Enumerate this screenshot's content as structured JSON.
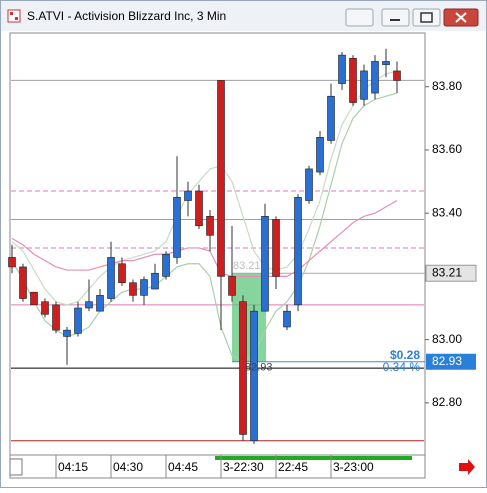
{
  "chart_data": {
    "type": "candlestick",
    "title": "S.ATVI - Activision Blizzard Inc, 3 Min",
    "categories": [
      null,
      null,
      null,
      null,
      "04:15",
      null,
      null,
      null,
      null,
      "04:30",
      null,
      null,
      null,
      null,
      "04:45",
      null,
      null,
      null,
      null,
      "3-22:30",
      null,
      null,
      null,
      null,
      "22:45",
      null,
      null,
      null,
      null,
      "3-23:00",
      null,
      null,
      null,
      null,
      null,
      null
    ],
    "open": [
      83.26,
      83.23,
      83.15,
      83.12,
      83.11,
      83.01,
      83.02,
      83.1,
      83.09,
      83.13,
      83.24,
      83.18,
      83.14,
      83.16,
      83.2,
      83.26,
      83.44,
      83.47,
      83.39,
      83.82,
      83.2,
      83.12,
      82.68,
      83.09,
      83.38,
      83.04,
      83.11,
      83.44,
      83.53,
      83.63,
      83.81,
      83.89,
      83.76,
      83.78,
      83.87,
      83.85
    ],
    "high": [
      83.3,
      83.24,
      83.15,
      83.13,
      83.12,
      83.04,
      83.12,
      83.19,
      83.16,
      83.31,
      83.26,
      83.19,
      83.2,
      83.24,
      83.28,
      83.58,
      83.5,
      83.49,
      83.41,
      83.82,
      83.36,
      83.14,
      83.11,
      83.43,
      83.39,
      83.11,
      83.46,
      83.55,
      83.66,
      83.81,
      83.91,
      83.9,
      83.87,
      83.9,
      83.92,
      83.88
    ],
    "low": [
      83.21,
      83.12,
      83.11,
      83.07,
      83.02,
      82.92,
      83.01,
      83.09,
      83.09,
      83.12,
      83.17,
      83.12,
      83.11,
      83.16,
      83.19,
      83.24,
      83.39,
      83.35,
      83.28,
      83.03,
      83.12,
      82.68,
      82.67,
      83.09,
      83.16,
      83.03,
      83.09,
      83.43,
      83.52,
      83.62,
      83.79,
      83.74,
      83.74,
      83.76,
      83.83,
      83.78
    ],
    "close": [
      83.23,
      83.13,
      83.11,
      83.08,
      83.03,
      83.03,
      83.1,
      83.12,
      83.14,
      83.26,
      83.18,
      83.14,
      83.19,
      83.21,
      83.27,
      83.45,
      83.47,
      83.36,
      83.33,
      83.2,
      83.14,
      82.7,
      83.09,
      83.39,
      83.2,
      83.09,
      83.45,
      83.54,
      83.64,
      83.77,
      83.9,
      83.75,
      83.85,
      83.88,
      83.88,
      83.82
    ],
    "up_color": "#2a6fd4",
    "down_color": "#cc2020",
    "series": [
      {
        "color": "#c6dcc6",
        "values": [
          83.31,
          83.28,
          83.22,
          83.16,
          83.12,
          83.11,
          83.12,
          83.16,
          83.2,
          83.23,
          83.25,
          83.26,
          83.27,
          83.28,
          83.31,
          83.39,
          83.46,
          83.5,
          83.54,
          83.55,
          83.5,
          83.39,
          83.28,
          83.23,
          83.22,
          83.23,
          83.27,
          83.35,
          83.44,
          83.57,
          83.68,
          83.74,
          83.79,
          83.82,
          83.84,
          83.85
        ]
      },
      {
        "color": "#a9cfa9",
        "values": [
          83.25,
          83.19,
          83.12,
          83.06,
          83.03,
          83.01,
          83.02,
          83.04,
          83.09,
          83.12,
          83.15,
          83.16,
          83.16,
          83.17,
          83.2,
          83.23,
          83.24,
          83.24,
          83.2,
          83.04,
          82.95,
          82.93,
          82.95,
          83.03,
          83.09,
          83.12,
          83.17,
          83.25,
          83.36,
          83.49,
          83.62,
          83.7,
          83.74,
          83.76,
          83.77,
          83.78
        ]
      },
      {
        "color": "#e58fb5",
        "values": [
          83.32,
          83.3,
          83.27,
          83.25,
          83.23,
          83.22,
          83.22,
          83.22,
          83.23,
          83.24,
          83.25,
          83.25,
          83.26,
          83.27,
          83.27,
          83.28,
          83.29,
          83.29,
          83.28,
          83.21,
          83.2,
          83.2,
          83.2,
          83.2,
          83.2,
          83.2,
          83.22,
          83.25,
          83.28,
          83.31,
          83.34,
          83.37,
          83.39,
          83.4,
          83.42,
          83.44
        ]
      }
    ],
    "levels": [
      {
        "value": 83.82,
        "color": "#a0a0a0"
      },
      {
        "value": 83.47,
        "color": "#e07ab8",
        "dash": true
      },
      {
        "value": 83.38,
        "color": "#e07ab8"
      },
      {
        "value": 83.29,
        "color": "#e07ab8",
        "dash": true
      },
      {
        "value": 83.11,
        "color": "#e07ab8"
      },
      {
        "value": 82.91,
        "color": "#000000"
      },
      {
        "value": 82.68,
        "color": "#b22222"
      }
    ],
    "trade": {
      "entry": 83.21,
      "exit": 82.93,
      "profit_label": "$0.28",
      "percent_label": "0.34 %"
    },
    "ylim": [
      82.635,
      83.97
    ],
    "yticks": [
      {
        "value": 82.8,
        "label": "82.80"
      },
      {
        "value": 83,
        "label": "83.00"
      },
      {
        "value": 83.4,
        "label": "83.40"
      },
      {
        "value": 83.6,
        "label": "83.60"
      },
      {
        "value": 83.8,
        "label": "83.80"
      }
    ],
    "grid": false
  }
}
